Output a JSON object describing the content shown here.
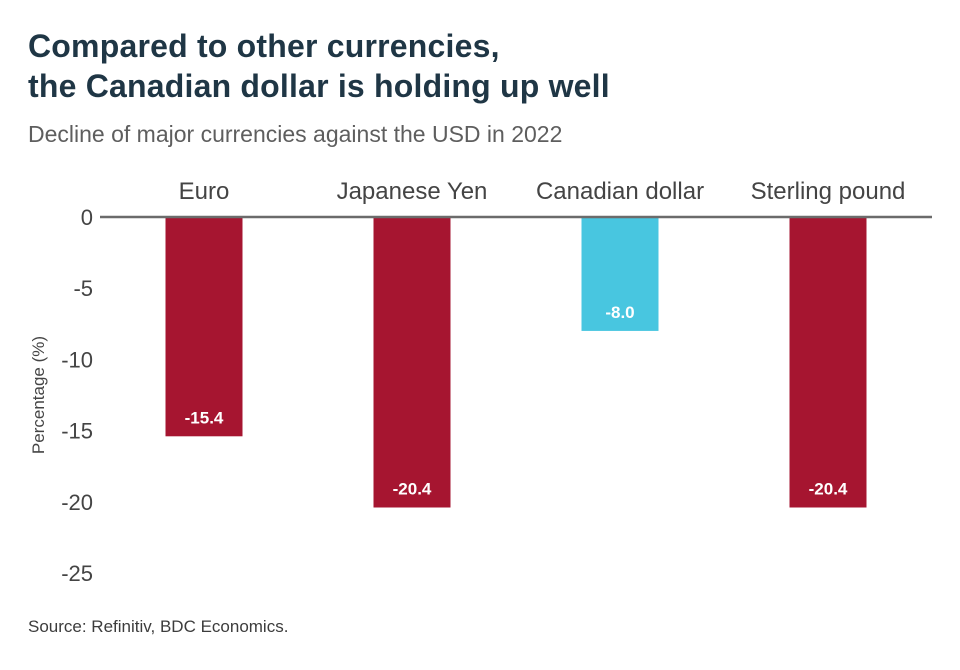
{
  "header": {
    "title_line1": "Compared to other currencies,",
    "title_line2": "the Canadian dollar is holding up well",
    "subtitle": "Decline of major currencies against the USD in 2022"
  },
  "footer": {
    "source": "Source: Refinitiv, BDC Economics."
  },
  "colors": {
    "default_bar": "#a61530",
    "highlight_bar": "#48c6e0",
    "baseline": "#6b6b6b",
    "axis_text": "#444444",
    "value_label": "#ffffff"
  },
  "chart_data": {
    "type": "bar",
    "orientation": "vertical",
    "categories": [
      "Euro",
      "Japanese Yen",
      "Canadian dollar",
      "Sterling pound"
    ],
    "values": [
      -15.4,
      -20.4,
      -8.0,
      -20.4
    ],
    "value_labels": [
      "-15.4",
      "-20.4",
      "-8.0",
      "-20.4"
    ],
    "highlight_index": 2,
    "ylabel": "Percentage (%)",
    "ylim": [
      -25,
      0
    ],
    "yticks": [
      0,
      -5,
      -10,
      -15,
      -20,
      -25
    ],
    "category_labels_position": "top",
    "grid": false
  }
}
